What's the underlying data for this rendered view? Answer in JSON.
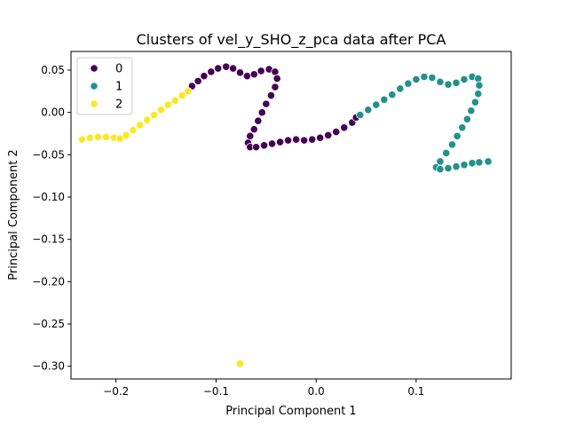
{
  "chart_data": {
    "type": "scatter",
    "title": "Clusters of vel_y_SHO_z_pca data after PCA",
    "xlabel": "Principal Component 1",
    "ylabel": "Principal Component 2",
    "xlim": [
      -0.245,
      0.195
    ],
    "ylim": [
      -0.315,
      0.072
    ],
    "xticks": [
      -0.2,
      -0.1,
      0.0,
      0.1
    ],
    "xtick_labels": [
      "−0.2",
      "−0.1",
      "0.0",
      "0.1"
    ],
    "yticks": [
      0.05,
      0.0,
      -0.05,
      -0.1,
      -0.15,
      -0.2,
      -0.25,
      -0.3
    ],
    "ytick_labels": [
      "0.05",
      "0.00",
      "−0.05",
      "−0.10",
      "−0.15",
      "−0.20",
      "−0.25",
      "−0.30"
    ],
    "grid": false,
    "legend_position": "top-left",
    "series": [
      {
        "name": "0",
        "color": "#440154",
        "points": [
          [
            -0.124,
            0.031
          ],
          [
            -0.118,
            0.037
          ],
          [
            -0.112,
            0.043
          ],
          [
            -0.105,
            0.048
          ],
          [
            -0.098,
            0.052
          ],
          [
            -0.09,
            0.054
          ],
          [
            -0.083,
            0.052
          ],
          [
            -0.076,
            0.047
          ],
          [
            -0.069,
            0.043
          ],
          [
            -0.062,
            0.045
          ],
          [
            -0.055,
            0.049
          ],
          [
            -0.047,
            0.051
          ],
          [
            -0.041,
            0.048
          ],
          [
            -0.039,
            0.04
          ],
          [
            -0.041,
            0.03
          ],
          [
            -0.045,
            0.02
          ],
          [
            -0.05,
            0.01
          ],
          [
            -0.054,
            0.0
          ],
          [
            -0.058,
            -0.01
          ],
          [
            -0.062,
            -0.02
          ],
          [
            -0.066,
            -0.028
          ],
          [
            -0.068,
            -0.036
          ],
          [
            -0.066,
            -0.041
          ],
          [
            -0.06,
            -0.041
          ],
          [
            -0.052,
            -0.039
          ],
          [
            -0.044,
            -0.037
          ],
          [
            -0.036,
            -0.035
          ],
          [
            -0.028,
            -0.033
          ],
          [
            -0.02,
            -0.032
          ],
          [
            -0.012,
            -0.033
          ],
          [
            -0.004,
            -0.032
          ],
          [
            0.004,
            -0.03
          ],
          [
            0.012,
            -0.027
          ],
          [
            0.02,
            -0.023
          ],
          [
            0.028,
            -0.018
          ],
          [
            0.036,
            -0.012
          ],
          [
            0.04,
            -0.006
          ]
        ]
      },
      {
        "name": "1",
        "color": "#21918c",
        "points": [
          [
            0.044,
            -0.003
          ],
          [
            0.052,
            0.003
          ],
          [
            0.06,
            0.009
          ],
          [
            0.068,
            0.015
          ],
          [
            0.076,
            0.021
          ],
          [
            0.084,
            0.028
          ],
          [
            0.092,
            0.034
          ],
          [
            0.1,
            0.039
          ],
          [
            0.108,
            0.042
          ],
          [
            0.116,
            0.041
          ],
          [
            0.124,
            0.036
          ],
          [
            0.132,
            0.033
          ],
          [
            0.14,
            0.035
          ],
          [
            0.148,
            0.039
          ],
          [
            0.156,
            0.042
          ],
          [
            0.162,
            0.04
          ],
          [
            0.163,
            0.032
          ],
          [
            0.162,
            0.022
          ],
          [
            0.159,
            0.012
          ],
          [
            0.155,
            0.002
          ],
          [
            0.151,
            -0.008
          ],
          [
            0.146,
            -0.018
          ],
          [
            0.141,
            -0.028
          ],
          [
            0.136,
            -0.038
          ],
          [
            0.13,
            -0.048
          ],
          [
            0.124,
            -0.058
          ],
          [
            0.12,
            -0.065
          ],
          [
            0.124,
            -0.067
          ],
          [
            0.132,
            -0.066
          ],
          [
            0.14,
            -0.064
          ],
          [
            0.148,
            -0.062
          ],
          [
            0.156,
            -0.06
          ],
          [
            0.163,
            -0.059
          ],
          [
            0.172,
            -0.058
          ]
        ]
      },
      {
        "name": "2",
        "color": "#fde725",
        "points": [
          [
            -0.234,
            -0.032
          ],
          [
            -0.226,
            -0.03
          ],
          [
            -0.218,
            -0.029
          ],
          [
            -0.21,
            -0.029
          ],
          [
            -0.202,
            -0.03
          ],
          [
            -0.196,
            -0.031
          ],
          [
            -0.19,
            -0.027
          ],
          [
            -0.183,
            -0.021
          ],
          [
            -0.176,
            -0.015
          ],
          [
            -0.169,
            -0.009
          ],
          [
            -0.162,
            -0.003
          ],
          [
            -0.155,
            0.003
          ],
          [
            -0.148,
            0.009
          ],
          [
            -0.141,
            0.014
          ],
          [
            -0.134,
            0.02
          ],
          [
            -0.128,
            0.025
          ],
          [
            -0.076,
            -0.297
          ]
        ]
      }
    ]
  }
}
